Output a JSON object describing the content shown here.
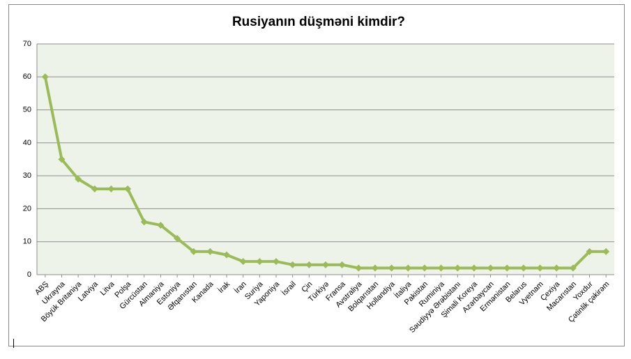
{
  "chart_data": {
    "type": "line",
    "title": "Rusiyanın düşməni kimdir?",
    "categories": [
      "ABŞ",
      "Ukrayna",
      "Böyük Britaniya",
      "Latviya",
      "Litva",
      "Polşa",
      "Gürcüstan",
      "Almaniya",
      "Estoniya",
      "Əfqanıstan",
      "Kanada",
      "İrak",
      "İran",
      "Suriya",
      "Yaponiya",
      "İsrail",
      "Çin",
      "Türkiyə",
      "Fransa",
      "Avstraliya",
      "Bolqarıstan",
      "Hollandiya",
      "İtaliya",
      "Pakistan",
      "Ruminiya",
      "Səudiyyə Ərəbistanı",
      "Şimali Koreya",
      "Azərbaycan",
      "Ermənistan",
      "Belarus",
      "Vyetnam",
      "Çexiya",
      "Macarıstan",
      "Yoxdur",
      "Çətinlik çəkirəm"
    ],
    "values": [
      60,
      35,
      29,
      26,
      26,
      26,
      16,
      15,
      11,
      7,
      7,
      6,
      4,
      4,
      4,
      3,
      3,
      3,
      3,
      2,
      2,
      2,
      2,
      2,
      2,
      2,
      2,
      2,
      2,
      2,
      2,
      2,
      2,
      7,
      7
    ],
    "color": "#9bbb59",
    "ylim": [
      0,
      70
    ],
    "yticks": [
      0,
      10,
      20,
      30,
      40,
      50,
      60,
      70
    ],
    "grid": true
  }
}
